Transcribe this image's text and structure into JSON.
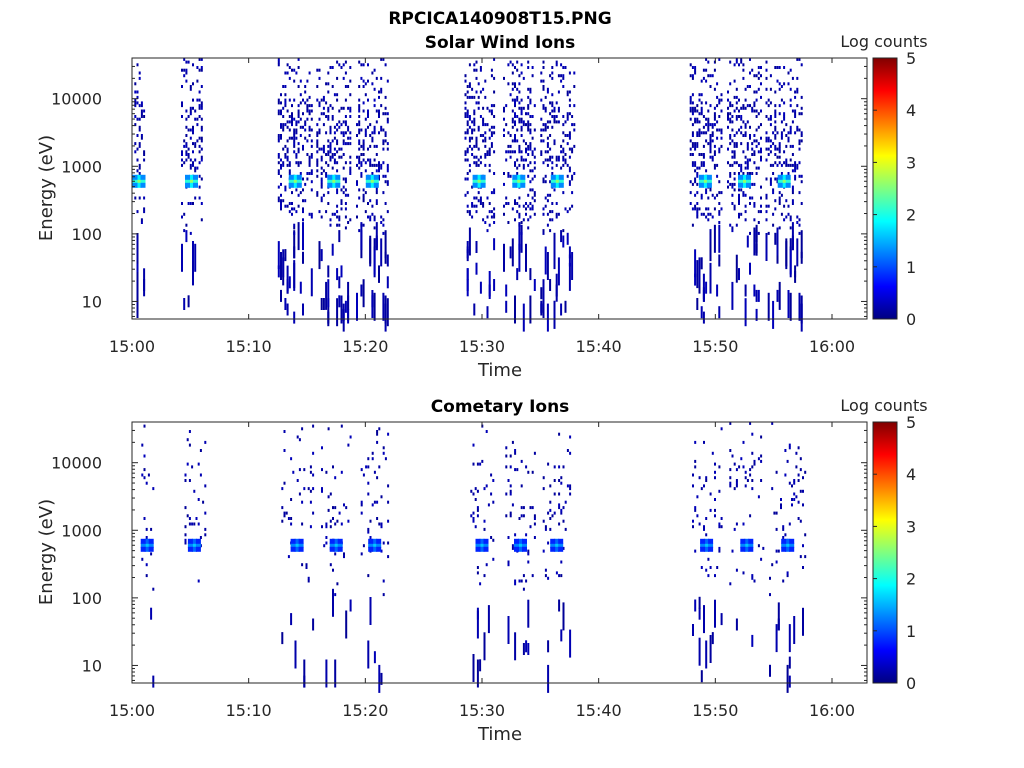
{
  "figure_title": "RPCICA140908T15.PNG",
  "chart_data": [
    {
      "type": "heatmap",
      "title": "Solar Wind Ions",
      "xlabel": "Time",
      "ylabel": "Energy (eV)",
      "x_range": [
        "15:00",
        "16:03"
      ],
      "y_range_eV": [
        5.5,
        40000
      ],
      "y_scale": "log",
      "x_tick_labels": [
        "15:00",
        "15:10",
        "15:20",
        "15:30",
        "15:40",
        "15:50",
        "16:00"
      ],
      "y_tick_labels": [
        "10",
        "100",
        "1000",
        "10000"
      ],
      "y_tick_values": [
        10,
        100,
        1000,
        10000
      ],
      "grid": false,
      "colorbar": {
        "label": "Log counts",
        "range": [
          0,
          5
        ],
        "ticks": [
          "0",
          "1",
          "2",
          "3",
          "4",
          "5"
        ],
        "colormap": "jet"
      },
      "sweeps": [
        {
          "time_min": [
            0.2,
            1.0
          ],
          "peak_eV": 600,
          "peak_log": 2.6
        },
        {
          "time_min": [
            4.2,
            6.0
          ],
          "peak_eV": 600,
          "peak_log": 2.6
        },
        {
          "time_min": [
            12.5,
            15.5
          ],
          "peak_eV": 600,
          "peak_log": 2.6
        },
        {
          "time_min": [
            15.8,
            18.8
          ],
          "peak_eV": 600,
          "peak_log": 2.6
        },
        {
          "time_min": [
            19.2,
            22.0
          ],
          "peak_eV": 600,
          "peak_log": 2.6
        },
        {
          "time_min": [
            28.5,
            31.0
          ],
          "peak_eV": 600,
          "peak_log": 2.6
        },
        {
          "time_min": [
            31.8,
            34.5
          ],
          "peak_eV": 600,
          "peak_log": 2.6
        },
        {
          "time_min": [
            35.0,
            37.9
          ],
          "peak_eV": 600,
          "peak_log": 2.6
        },
        {
          "time_min": [
            47.8,
            50.5
          ],
          "peak_eV": 600,
          "peak_log": 2.6
        },
        {
          "time_min": [
            51.0,
            54.0
          ],
          "peak_eV": 600,
          "peak_log": 2.6
        },
        {
          "time_min": [
            54.3,
            57.5
          ],
          "peak_eV": 600,
          "peak_log": 2.6
        }
      ]
    },
    {
      "type": "heatmap",
      "title": "Cometary Ions",
      "xlabel": "Time",
      "ylabel": "Energy (eV)",
      "x_range": [
        "15:00",
        "16:03"
      ],
      "y_range_eV": [
        5.5,
        40000
      ],
      "y_scale": "log",
      "x_tick_labels": [
        "15:00",
        "15:10",
        "15:20",
        "15:30",
        "15:40",
        "15:50",
        "16:00"
      ],
      "y_tick_labels": [
        "10",
        "100",
        "1000",
        "10000"
      ],
      "y_tick_values": [
        10,
        100,
        1000,
        10000
      ],
      "grid": false,
      "colorbar": {
        "label": "Log counts",
        "range": [
          0,
          5
        ],
        "ticks": [
          "0",
          "1",
          "2",
          "3",
          "4",
          "5"
        ],
        "colormap": "jet"
      },
      "sweeps": [
        {
          "time_min": [
            0.8,
            1.8
          ],
          "peak_eV": 600,
          "peak_log": 1.6
        },
        {
          "time_min": [
            4.5,
            6.2
          ],
          "peak_eV": 600,
          "peak_log": 1.6
        },
        {
          "time_min": [
            12.8,
            15.5
          ],
          "peak_eV": 600,
          "peak_log": 1.6
        },
        {
          "time_min": [
            16.2,
            18.8
          ],
          "peak_eV": 600,
          "peak_log": 1.6
        },
        {
          "time_min": [
            19.6,
            22.0
          ],
          "peak_eV": 600,
          "peak_log": 1.6
        },
        {
          "time_min": [
            29.0,
            31.0
          ],
          "peak_eV": 600,
          "peak_log": 1.6
        },
        {
          "time_min": [
            32.0,
            34.6
          ],
          "peak_eV": 600,
          "peak_log": 1.6
        },
        {
          "time_min": [
            35.2,
            37.6
          ],
          "peak_eV": 600,
          "peak_log": 1.6
        },
        {
          "time_min": [
            48.0,
            50.5
          ],
          "peak_eV": 600,
          "peak_log": 1.6
        },
        {
          "time_min": [
            51.2,
            54.2
          ],
          "peak_eV": 600,
          "peak_log": 1.6
        },
        {
          "time_min": [
            54.6,
            57.8
          ],
          "peak_eV": 600,
          "peak_log": 1.6
        }
      ]
    }
  ]
}
